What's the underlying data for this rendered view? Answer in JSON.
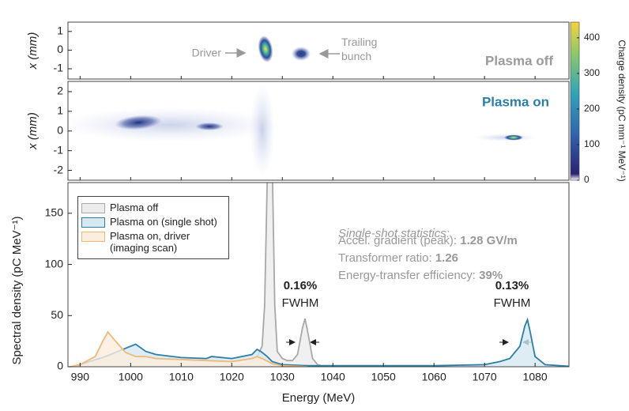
{
  "chart_data": [
    {
      "type": "image",
      "panel_label": "Plasma off",
      "ylabel": "x (mm)",
      "ylim": [
        -1.55,
        1.5
      ],
      "yticks": [
        -1,
        0,
        1
      ],
      "annotations": [
        "Driver",
        "Trailing bunch"
      ],
      "colorbar": {
        "label": "Charge density (pC mm⁻¹ MeV⁻¹)",
        "clim": [
          0,
          444
        ],
        "ticks": [
          0,
          100,
          200,
          300,
          400
        ]
      }
    },
    {
      "type": "image",
      "panel_label": "Plasma on",
      "ylabel": "x (mm)",
      "ylim": [
        -2.5,
        2.52
      ],
      "yticks": [
        -2,
        -1,
        0,
        1,
        2
      ]
    },
    {
      "type": "area",
      "xlabel": "Energy (MeV)",
      "ylabel": "Spectral density (pC MeV⁻¹)",
      "xlim": [
        987.6,
        1086.7
      ],
      "xticks": [
        990,
        1000,
        1010,
        1020,
        1030,
        1040,
        1050,
        1060,
        1070,
        1080
      ],
      "ylim": [
        0,
        180
      ],
      "yticks": [
        0,
        50,
        100,
        150
      ],
      "series": [
        {
          "name": "Plasma off",
          "color": "#a8a8a8",
          "fill": "#ececec",
          "x": [
            1018,
            1022,
            1024,
            1025,
            1026,
            1026.5,
            1027,
            1027.5,
            1028,
            1028.5,
            1029,
            1030,
            1031,
            1032,
            1033,
            1034,
            1034.5,
            1035,
            1036,
            1037,
            1038,
            1040
          ],
          "values": [
            0,
            2,
            5,
            10,
            20,
            60,
            180,
            300,
            200,
            60,
            15,
            8,
            6,
            6,
            12,
            38,
            47,
            35,
            8,
            2,
            0.5,
            0
          ]
        },
        {
          "name": "Plasma on (single shot)",
          "color": "#2a7fa8",
          "fill": "#d6e8f0",
          "x": [
            989,
            990,
            995,
            1000,
            1001,
            1003,
            1005,
            1010,
            1015,
            1016,
            1020,
            1024,
            1025,
            1026,
            1027,
            1028,
            1030,
            1035,
            1060,
            1070,
            1073,
            1075,
            1077,
            1078,
            1078.5,
            1079,
            1080,
            1082,
            1086.7
          ],
          "values": [
            0,
            2,
            10,
            20,
            22,
            15,
            12,
            9,
            8,
            10,
            8,
            12,
            17,
            14,
            10,
            5,
            2,
            1,
            1,
            2,
            5,
            8,
            20,
            40,
            46,
            35,
            10,
            2,
            0.5
          ]
        },
        {
          "name": "Plasma on, driver (imaging scan)",
          "color": "#f0b878",
          "fill": "#fbeedd",
          "x": [
            988,
            990,
            993,
            994.5,
            995.5,
            997,
            999,
            1001,
            1003,
            1005,
            1010,
            1015,
            1020,
            1024,
            1025,
            1026,
            1028,
            1030,
            1035
          ],
          "values": [
            0,
            2,
            10,
            25,
            34,
            25,
            14,
            10,
            10,
            8,
            7,
            6,
            5,
            8,
            10,
            8,
            3,
            1,
            0
          ]
        }
      ],
      "annotations": [
        {
          "value": "0.16%",
          "label": "FWHM"
        },
        {
          "value": "0.13%",
          "label": "FWHM"
        }
      ],
      "stats_title": "Single-shot statistics:",
      "stats": [
        {
          "label": "Accel. gradient (peak): ",
          "value": "1.28 GV/m"
        },
        {
          "label": "Transformer ratio: ",
          "value": "1.26"
        },
        {
          "label": "Energy-transfer efficiency: ",
          "value": "39%"
        }
      ]
    }
  ]
}
